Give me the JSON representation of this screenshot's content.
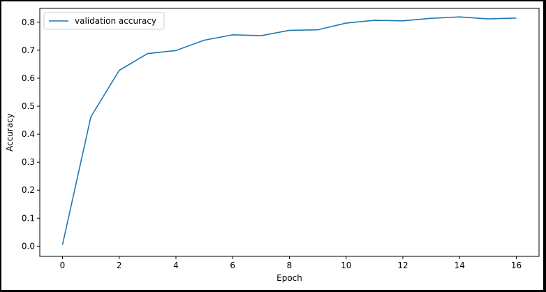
{
  "chart_data": {
    "type": "line",
    "title": "",
    "xlabel": "Epoch",
    "ylabel": "Accuracy",
    "xlim": [
      -0.8,
      16.8
    ],
    "ylim": [
      -0.0365,
      0.8495
    ],
    "x_ticks": [
      0,
      2,
      4,
      6,
      8,
      10,
      12,
      14,
      16
    ],
    "y_ticks": [
      0.0,
      0.1,
      0.2,
      0.3,
      0.4,
      0.5,
      0.6,
      0.7,
      0.8
    ],
    "y_tick_labels": [
      "0.0",
      "0.1",
      "0.2",
      "0.3",
      "0.4",
      "0.5",
      "0.6",
      "0.7",
      "0.8"
    ],
    "grid": false,
    "legend": {
      "position": "upper-left"
    },
    "series": [
      {
        "name": "validation accuracy",
        "color": "#1f77b4",
        "x": [
          0,
          1,
          2,
          3,
          4,
          5,
          6,
          7,
          8,
          9,
          10,
          11,
          12,
          13,
          14,
          15,
          16
        ],
        "values": [
          0.005,
          0.462,
          0.628,
          0.688,
          0.699,
          0.736,
          0.755,
          0.752,
          0.771,
          0.773,
          0.797,
          0.807,
          0.805,
          0.814,
          0.819,
          0.812,
          0.815
        ]
      }
    ]
  }
}
